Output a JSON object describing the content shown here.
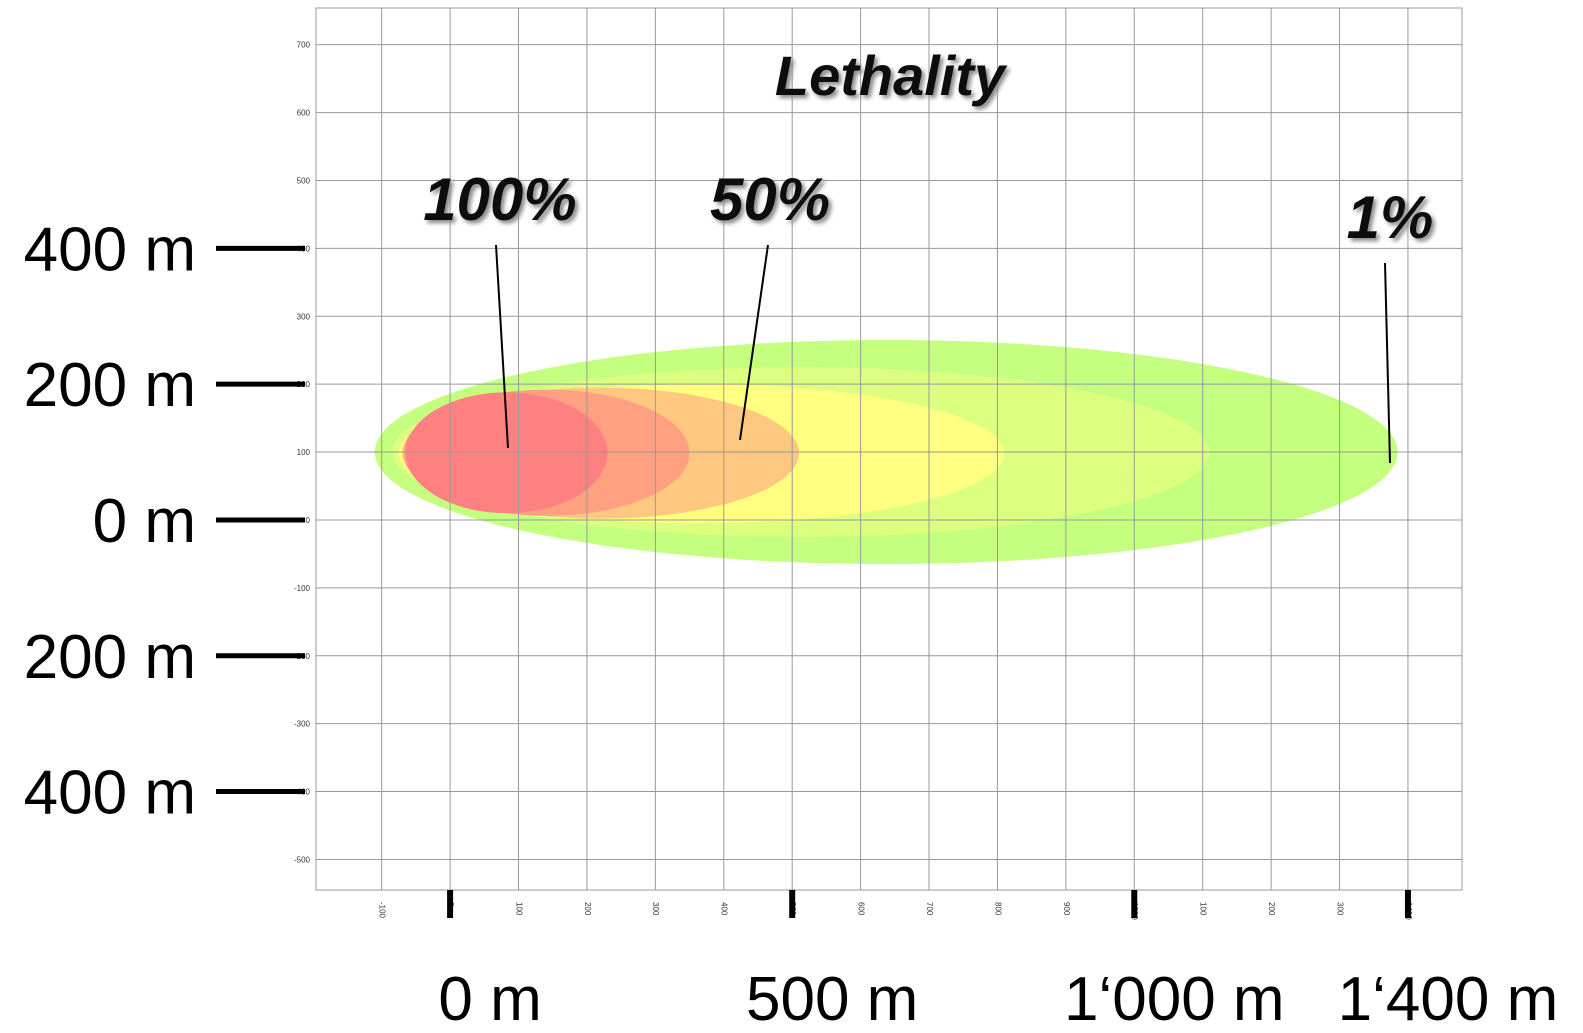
{
  "chart_data": {
    "type": "contour",
    "title": "Lethality",
    "xlim": [
      -196,
      1479
    ],
    "ylim": [
      -545,
      754
    ],
    "xticks": [
      -100,
      0,
      100,
      200,
      300,
      400,
      500,
      600,
      700,
      800,
      900,
      1000,
      {
        "value": 1100,
        "label": "100"
      },
      {
        "value": 1200,
        "label": "200"
      },
      {
        "value": 1300,
        "label": "300"
      },
      1400
    ],
    "yticks": [
      -500,
      -400,
      -300,
      -200,
      -100,
      0,
      100,
      200,
      300,
      400,
      500,
      600,
      700
    ],
    "grid": true,
    "zones": [
      {
        "color": "#c4ff80",
        "x": [
          -110,
          1385
        ],
        "y": [
          -65,
          265
        ]
      },
      {
        "color": "#dcff80",
        "x": [
          -85,
          1110
        ],
        "y": [
          -25,
          225
        ]
      },
      {
        "color": "#ffff80",
        "x": [
          -75,
          810
        ],
        "y": [
          -5,
          200
        ]
      },
      {
        "color": "#ffc880",
        "x": [
          -70,
          510
        ],
        "y": [
          2,
          195
        ]
      },
      {
        "color": "#ffa080",
        "x": [
          -68,
          350
        ],
        "y": [
          6,
          192
        ]
      },
      {
        "color": "#ff8080",
        "x": [
          -65,
          230
        ],
        "y": [
          10,
          188
        ]
      }
    ],
    "scale_y": [
      {
        "value": 400,
        "label": "400 m"
      },
      {
        "value": 200,
        "label": "200 m"
      },
      {
        "value": 0,
        "label": "0 m"
      },
      {
        "value": -200,
        "label": "200 m"
      },
      {
        "value": -400,
        "label": "400 m"
      }
    ],
    "scale_x": [
      {
        "value": 0,
        "label": "0 m"
      },
      {
        "value": 500,
        "label": "500 m"
      },
      {
        "value": 1000,
        "label": "1‘000 m"
      },
      {
        "value": 1400,
        "label": "1‘400 m"
      }
    ],
    "annotations": [
      "100%",
      "50%",
      "1%"
    ]
  }
}
